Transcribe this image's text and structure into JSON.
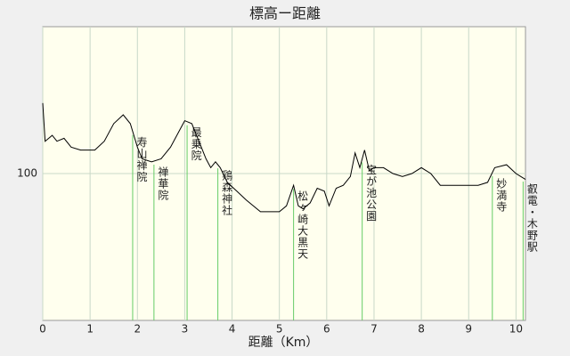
{
  "chart_data": {
    "type": "line",
    "title": "標高ー距離",
    "x_label": "距離（Km）",
    "x": [
      0,
      0.05,
      0.2,
      0.3,
      0.45,
      0.6,
      0.8,
      1.0,
      1.1,
      1.3,
      1.5,
      1.7,
      1.85,
      2.0,
      2.1,
      2.3,
      2.5,
      2.7,
      2.9,
      3.0,
      3.15,
      3.3,
      3.45,
      3.55,
      3.65,
      3.75,
      3.9,
      4.1,
      4.3,
      4.6,
      5.0,
      5.15,
      5.3,
      5.4,
      5.5,
      5.65,
      5.8,
      5.95,
      6.05,
      6.2,
      6.35,
      6.5,
      6.6,
      6.7,
      6.8,
      6.9,
      7.0,
      7.2,
      7.4,
      7.6,
      7.8,
      8.0,
      8.2,
      8.4,
      8.8,
      9.2,
      9.4,
      9.55,
      9.8,
      10.0,
      10.1,
      10.2
    ],
    "series": [
      {
        "color": "#000000",
        "values": [
          124,
          111,
          113,
          111,
          112,
          109,
          108,
          108,
          108,
          111,
          117,
          120,
          117,
          109,
          105,
          104,
          105,
          109,
          115,
          118,
          117,
          111,
          105,
          102,
          104,
          102,
          97,
          94,
          91,
          87,
          87,
          89,
          96,
          89,
          88,
          90,
          95,
          94,
          89,
          95,
          96,
          99,
          107,
          102,
          108,
          101,
          102,
          102,
          100,
          99,
          100,
          102,
          100,
          96,
          96,
          96,
          97,
          102,
          103,
          100,
          99,
          98
        ]
      }
    ],
    "xlim": [
      0,
      10.2
    ],
    "ylim": [
      50,
      150
    ],
    "xticks": [
      0,
      1,
      2,
      3,
      4,
      5,
      6,
      7,
      8,
      9,
      10
    ],
    "yticks": [
      100
    ],
    "grid": true,
    "landmark_color": "#66cc66",
    "annotations": [
      {
        "text": "寿山禅院",
        "x": 1.9
      },
      {
        "text": "禅華院",
        "x": 2.35
      },
      {
        "text": "最乗院",
        "x": 3.05
      },
      {
        "text": "鶏森神社",
        "x": 3.7
      },
      {
        "text": "松ヶ崎大黒天",
        "x": 5.3
      },
      {
        "text": "宝が池公園",
        "x": 6.75
      },
      {
        "text": "妙満寺",
        "x": 9.5
      },
      {
        "text": "叡電・木野駅",
        "x": 10.15
      }
    ]
  }
}
